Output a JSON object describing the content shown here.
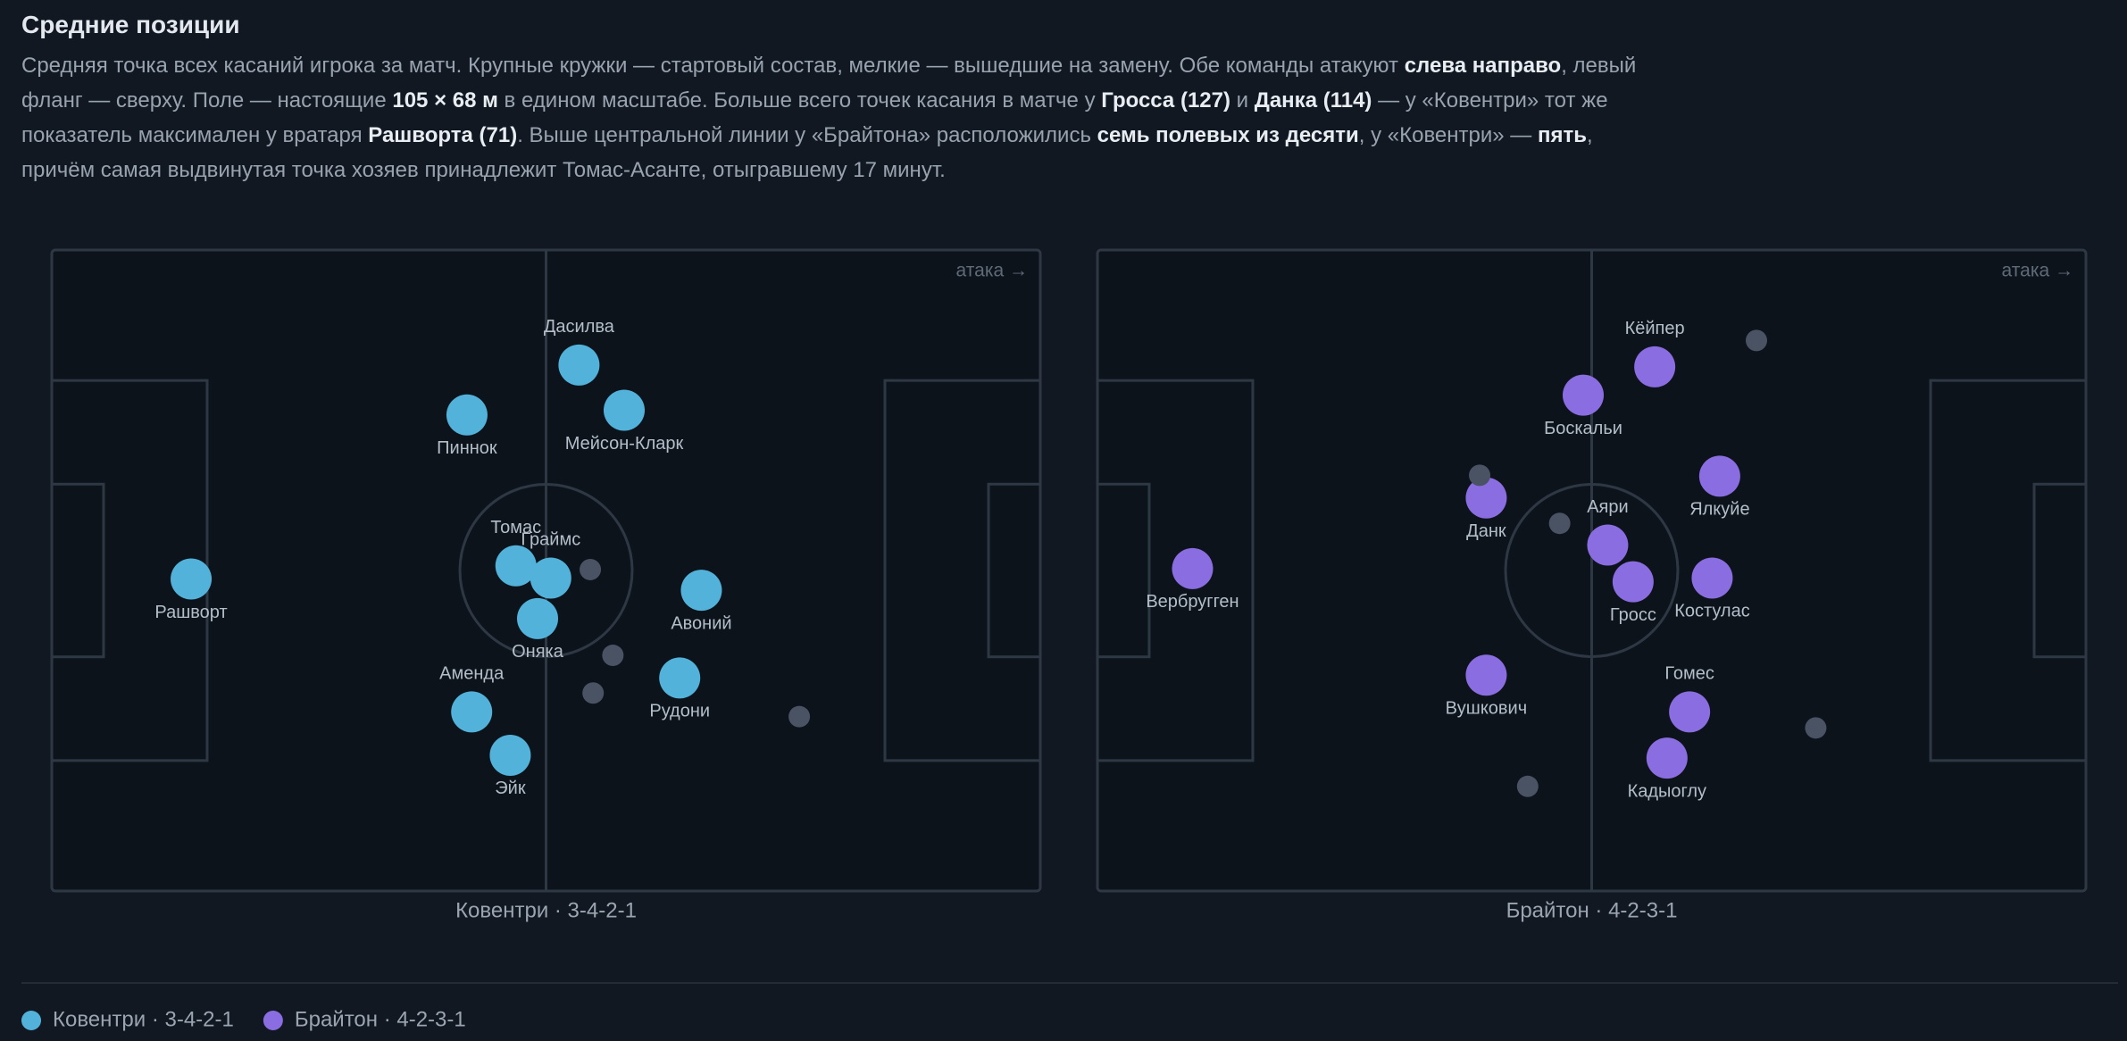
{
  "header": {
    "title": "Средние позиции",
    "description": [
      {
        "text": "Средняя точка всех касаний игрока за матч. Крупные кружки — стартовый состав, мелкие — вышедшие на замену. Обе команды атакуют ",
        "bold": false
      },
      {
        "text": "слева направо",
        "bold": true
      },
      {
        "text": ", левый фланг — сверху. Поле — настоящие ",
        "bold": false
      },
      {
        "text": "105 × 68 м",
        "bold": true
      },
      {
        "text": " в едином масштабе. Больше всего точек касания в матче у ",
        "bold": false
      },
      {
        "text": "Гросса (127)",
        "bold": true
      },
      {
        "text": " и ",
        "bold": false
      },
      {
        "text": "Данка (114)",
        "bold": true
      },
      {
        "text": " — у «Ковентри» тот же показатель максимален у вратаря ",
        "bold": false
      },
      {
        "text": "Рашворта (71)",
        "bold": true
      },
      {
        "text": ". Выше центральной линии у «Брайтона» расположились ",
        "bold": false
      },
      {
        "text": "семь полевых из десяти",
        "bold": true
      },
      {
        "text": ", у «Ковентри» — ",
        "bold": false
      },
      {
        "text": "пять",
        "bold": true
      },
      {
        "text": ", причём самая выдвинутая точка хозяев принадлежит Томас-Асанте, отыгравшему 17 минут.",
        "bold": false
      }
    ]
  },
  "chart_data": [
    {
      "type": "scatter",
      "title": "Ковентри · 3-4-2-1",
      "annotation": "атака →",
      "xlim": [
        0,
        105
      ],
      "ylim": [
        68,
        0
      ],
      "series": [
        {
          "name": "Ковентри · 3-4-2-1",
          "color": "#52b2da",
          "labels": [
            "Дасилва",
            "Пиннок",
            "Мейсон-Кларк",
            "Томас",
            "Граймс",
            "Рашворт",
            "Авоний",
            "Оняка",
            "Рудони",
            "Аменда",
            "Эйк"
          ],
          "x": [
            56.0,
            44.1,
            60.8,
            49.3,
            53.0,
            14.8,
            69.0,
            51.6,
            66.7,
            44.6,
            48.7
          ],
          "values": [
            12.2,
            17.5,
            17.0,
            33.5,
            34.8,
            34.9,
            36.1,
            39.1,
            45.4,
            49.0,
            53.6
          ]
        },
        {
          "color": "#4a5364",
          "x": [
            57.2,
            59.6,
            57.5,
            79.4
          ],
          "values": [
            33.9,
            43.0,
            47.0,
            49.5
          ]
        }
      ]
    },
    {
      "type": "scatter",
      "title": "Брайтон · 4-2-3-1",
      "annotation": "атака →",
      "xlim": [
        0,
        105
      ],
      "ylim": [
        68,
        0
      ],
      "series": [
        {
          "name": "Брайтон · 4-2-3-1",
          "color": "#8a6de0",
          "labels": [
            "Кёйпер",
            "Боскальи",
            "Ялкуйе",
            "Данк",
            "Аяри",
            "Гросс",
            "Костулас",
            "Вербругген",
            "Вушкович",
            "Гомес",
            "Кадыоглу"
          ],
          "x": [
            59.2,
            51.6,
            66.1,
            41.3,
            54.2,
            56.9,
            65.3,
            10.1,
            41.3,
            62.9,
            60.5
          ],
          "values": [
            12.4,
            15.4,
            24.0,
            26.3,
            31.3,
            35.2,
            34.8,
            33.8,
            45.1,
            49.0,
            53.9
          ]
        },
        {
          "color": "#4a5364",
          "x": [
            70.0,
            40.6,
            49.1,
            76.3,
            45.7
          ],
          "values": [
            9.6,
            23.9,
            29.0,
            50.7,
            56.9
          ]
        }
      ]
    }
  ]
}
